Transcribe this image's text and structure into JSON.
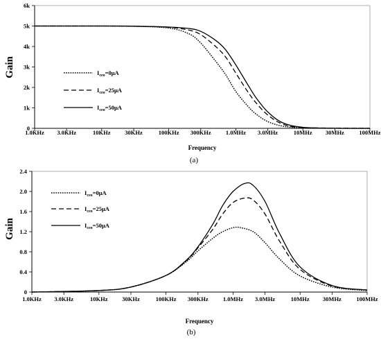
{
  "chart_data": [
    {
      "type": "line",
      "caption": "(a)",
      "xlabel": "Frequency",
      "ylabel": "Gain",
      "x_scale": "log",
      "xlim": [
        1000,
        100000000
      ],
      "ylim": [
        0,
        6000
      ],
      "x_ticks": [
        1000,
        3000,
        10000,
        30000,
        100000,
        300000,
        1000000,
        3000000,
        10000000,
        30000000,
        100000000
      ],
      "x_tick_labels": [
        "1.0KHz",
        "3.0KHz",
        "10KHz",
        "30KHz",
        "100KHz",
        "300KHz",
        "1.0MHz",
        "3.0MHz",
        "10MHz",
        "30MHz",
        "100MHz"
      ],
      "y_ticks": [
        0,
        1000,
        2000,
        3000,
        4000,
        5000,
        6000
      ],
      "y_tick_labels": [
        "0",
        "1k",
        "2k",
        "3k",
        "4k",
        "5k",
        "6k"
      ],
      "grid": false,
      "legend_position": "left-middle",
      "series": [
        {
          "name_main": "I",
          "name_sub": "ceo",
          "name_rest": "=0μA",
          "style": "dotted",
          "points": [
            [
              1000,
              5000
            ],
            [
              10000,
              5000
            ],
            [
              30000,
              4990
            ],
            [
              100000,
              4900
            ],
            [
              200000,
              4620
            ],
            [
              300000,
              4170
            ],
            [
              500000,
              3280
            ],
            [
              700000,
              2640
            ],
            [
              1000000,
              1800
            ],
            [
              1500000,
              1100
            ],
            [
              2000000,
              700
            ],
            [
              3000000,
              330
            ],
            [
              5000000,
              110
            ],
            [
              10000000,
              25
            ],
            [
              30000000,
              3
            ],
            [
              100000000,
              0
            ]
          ]
        },
        {
          "name_main": "I",
          "name_sub": "ceo",
          "name_rest": "=25μA",
          "style": "dashed",
          "points": [
            [
              1000,
              5000
            ],
            [
              10000,
              5000
            ],
            [
              30000,
              4990
            ],
            [
              100000,
              4940
            ],
            [
              200000,
              4800
            ],
            [
              300000,
              4580
            ],
            [
              500000,
              4000
            ],
            [
              700000,
              3500
            ],
            [
              1000000,
              2700
            ],
            [
              1500000,
              1800
            ],
            [
              2000000,
              1250
            ],
            [
              3000000,
              650
            ],
            [
              5000000,
              210
            ],
            [
              10000000,
              40
            ],
            [
              30000,
              4990
            ],
            [
              100000000,
              0
            ]
          ]
        },
        {
          "name_main": "I",
          "name_sub": "ceo",
          "name_rest": "=50μA",
          "style": "solid",
          "points": [
            [
              1000,
              5000
            ],
            [
              10000,
              5000
            ],
            [
              30000,
              4990
            ],
            [
              100000,
              4950
            ],
            [
              200000,
              4880
            ],
            [
              300000,
              4740
            ],
            [
              500000,
              4300
            ],
            [
              700000,
              3850
            ],
            [
              1000000,
              3100
            ],
            [
              1500000,
              2150
            ],
            [
              2000000,
              1500
            ],
            [
              3000000,
              800
            ],
            [
              5000000,
              270
            ],
            [
              10000000,
              50
            ],
            [
              30000000,
              5
            ],
            [
              100000000,
              0
            ]
          ]
        }
      ]
    },
    {
      "type": "line",
      "caption": "(b)",
      "xlabel": "Frequency",
      "ylabel": "Gain",
      "x_scale": "log",
      "xlim": [
        1000,
        100000000
      ],
      "ylim": [
        0,
        2.4
      ],
      "x_ticks": [
        1000,
        3000,
        10000,
        30000,
        100000,
        300000,
        1000000,
        3000000,
        10000000,
        30000000,
        100000000
      ],
      "x_tick_labels": [
        "1.0KHz",
        "3.0KHz",
        "10KHz",
        "30KHz",
        "100KHz",
        "300KHz",
        "1.0MHz",
        "3.0MHz",
        "10MHz",
        "30MHz",
        "100MHz"
      ],
      "y_ticks": [
        0,
        0.4,
        0.8,
        1.2,
        1.6,
        2.0,
        2.4
      ],
      "y_tick_labels": [
        "0",
        "0.4",
        "0.8",
        "1.2",
        "1.6",
        "2.0",
        "2.4"
      ],
      "grid": false,
      "legend_position": "top-left",
      "series": [
        {
          "name_main": "I",
          "name_sub": "ceo",
          "name_rest": "=0μA",
          "style": "dotted",
          "points": [
            [
              1000,
              0
            ],
            [
              10000,
              0.03
            ],
            [
              30000,
              0.1
            ],
            [
              100000,
              0.33
            ],
            [
              200000,
              0.6
            ],
            [
              300000,
              0.82
            ],
            [
              500000,
              1.07
            ],
            [
              700000,
              1.2
            ],
            [
              1000000,
              1.28
            ],
            [
              1300000,
              1.28
            ],
            [
              2000000,
              1.2
            ],
            [
              3000000,
              0.98
            ],
            [
              5000000,
              0.65
            ],
            [
              10000000,
              0.32
            ],
            [
              30000000,
              0.1
            ],
            [
              100000000,
              0.03
            ]
          ]
        },
        {
          "name_main": "I",
          "name_sub": "ceo",
          "name_rest": "=25μA",
          "style": "dashed",
          "points": [
            [
              1000,
              0
            ],
            [
              10000,
              0.03
            ],
            [
              30000,
              0.1
            ],
            [
              100000,
              0.33
            ],
            [
              200000,
              0.62
            ],
            [
              300000,
              0.88
            ],
            [
              500000,
              1.25
            ],
            [
              700000,
              1.55
            ],
            [
              1000000,
              1.78
            ],
            [
              1500000,
              1.87
            ],
            [
              2000000,
              1.83
            ],
            [
              3000000,
              1.55
            ],
            [
              5000000,
              1.0
            ],
            [
              10000000,
              0.45
            ],
            [
              30000000,
              0.12
            ],
            [
              100000000,
              0.04
            ]
          ]
        },
        {
          "name_main": "I",
          "name_sub": "ceo",
          "name_rest": "=50μA",
          "style": "solid",
          "points": [
            [
              1000,
              0
            ],
            [
              10000,
              0.03
            ],
            [
              30000,
              0.1
            ],
            [
              100000,
              0.33
            ],
            [
              200000,
              0.63
            ],
            [
              300000,
              0.9
            ],
            [
              500000,
              1.35
            ],
            [
              700000,
              1.72
            ],
            [
              1000000,
              2.0
            ],
            [
              1500000,
              2.16
            ],
            [
              2000000,
              2.12
            ],
            [
              3000000,
              1.8
            ],
            [
              5000000,
              1.15
            ],
            [
              10000000,
              0.5
            ],
            [
              30000000,
              0.13
            ],
            [
              100000000,
              0.04
            ]
          ]
        }
      ]
    }
  ]
}
